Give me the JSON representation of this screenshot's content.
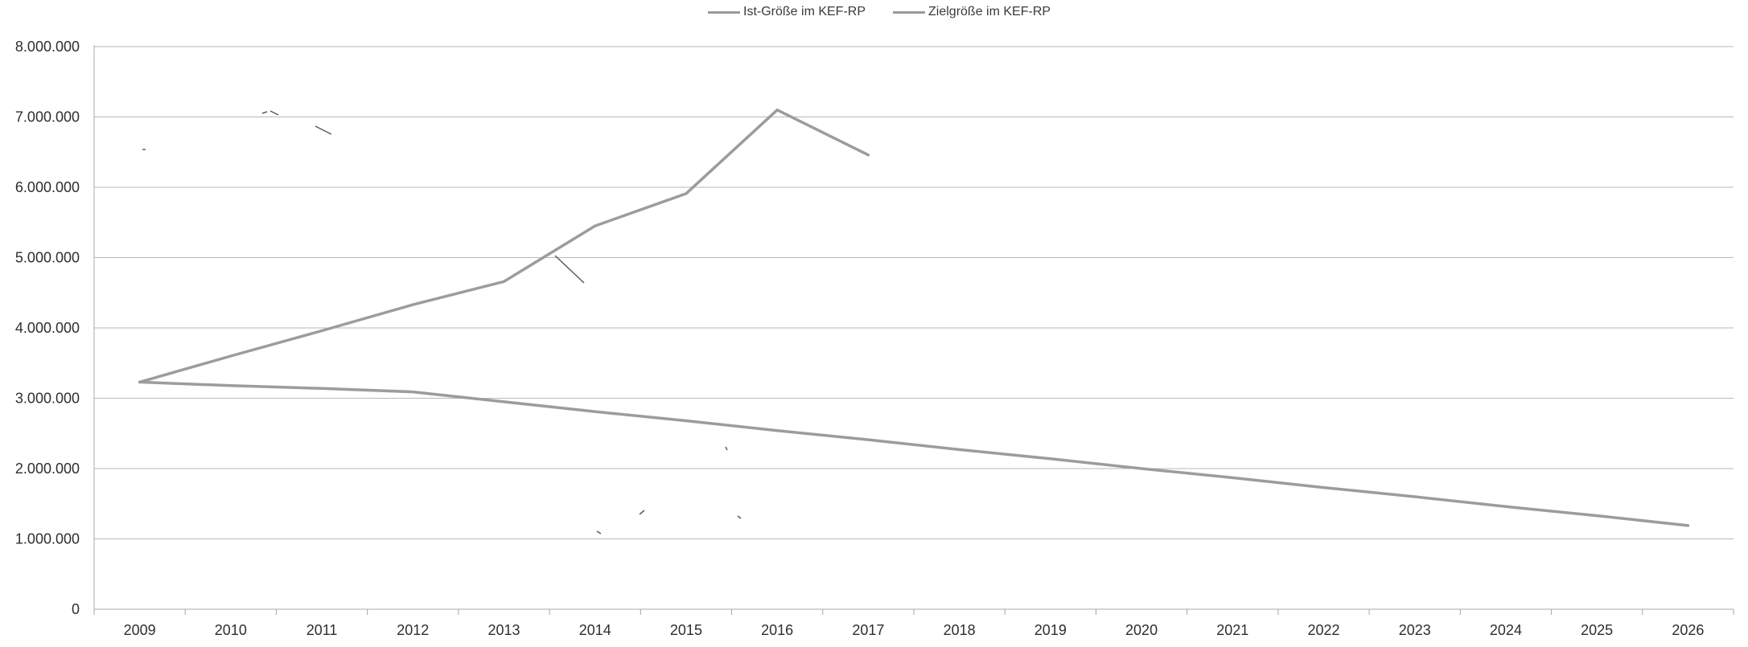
{
  "chart_data": {
    "type": "line",
    "title": "",
    "xlabel": "",
    "ylabel": "",
    "categories": [
      "2009",
      "2010",
      "2011",
      "2012",
      "2013",
      "2014",
      "2015",
      "2016",
      "2017",
      "2018",
      "2019",
      "2020",
      "2021",
      "2022",
      "2023",
      "2024",
      "2025",
      "2026"
    ],
    "ylim": [
      0,
      8000000
    ],
    "y_ticks": [
      0,
      1000000,
      2000000,
      3000000,
      4000000,
      5000000,
      6000000,
      7000000,
      8000000
    ],
    "y_tick_labels": [
      "0",
      "1.000.000",
      "2.000.000",
      "3.000.000",
      "4.000.000",
      "5.000.000",
      "6.000.000",
      "7.000.000",
      "8.000.000"
    ],
    "grid": true,
    "legend_position": "top-center",
    "series": [
      {
        "name": "Ist-Größe im KEF-RP",
        "color": "#9c9c9c",
        "values": [
          3230000,
          3600000,
          3960000,
          4330000,
          4660000,
          5450000,
          5910000,
          7100000,
          6460000,
          null,
          null,
          null,
          null,
          null,
          null,
          null,
          null,
          null
        ]
      },
      {
        "name": "Zielgröße im KEF-RP",
        "color": "#9c9c9c",
        "values": [
          3230000,
          3180000,
          3140000,
          3090000,
          2950000,
          2810000,
          2680000,
          2540000,
          2410000,
          2270000,
          2140000,
          2000000,
          1870000,
          1730000,
          1600000,
          1460000,
          1330000,
          1190000
        ]
      }
    ]
  }
}
